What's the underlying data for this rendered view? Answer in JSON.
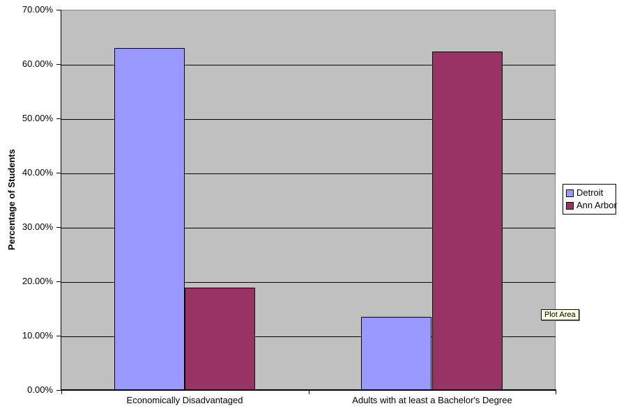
{
  "chart_data": {
    "type": "bar",
    "title": "",
    "categories": [
      "Economically Disadvantaged",
      "Adults with at least a Bachelor's Degree"
    ],
    "series": [
      {
        "name": "Detroit",
        "color": "#9999FF",
        "values": [
          63.0,
          13.4
        ]
      },
      {
        "name": "Ann Arbor",
        "color": "#993366",
        "values": [
          18.8,
          62.3
        ]
      }
    ],
    "xlabel": "",
    "ylabel": "Percentage of Students",
    "ylim": [
      0,
      70
    ],
    "yticks": [
      {
        "value": 0,
        "label": "0.00%"
      },
      {
        "value": 10,
        "label": "10.00%"
      },
      {
        "value": 20,
        "label": "20.00%"
      },
      {
        "value": 30,
        "label": "30.00%"
      },
      {
        "value": 40,
        "label": "40.00%"
      },
      {
        "value": 50,
        "label": "50.00%"
      },
      {
        "value": 60,
        "label": "60.00%"
      },
      {
        "value": 70,
        "label": "70.00%"
      }
    ],
    "grid": true,
    "legend_position": "right",
    "plot_area_fill": "#C0C0C0",
    "gap_width_percent": 150
  },
  "legend": {
    "items": [
      {
        "label": "Detroit",
        "color": "#9999FF"
      },
      {
        "label": "Ann Arbor",
        "color": "#993366"
      }
    ]
  },
  "tooltip": {
    "text": "Plot Area",
    "bg": "#FFFFE1"
  }
}
